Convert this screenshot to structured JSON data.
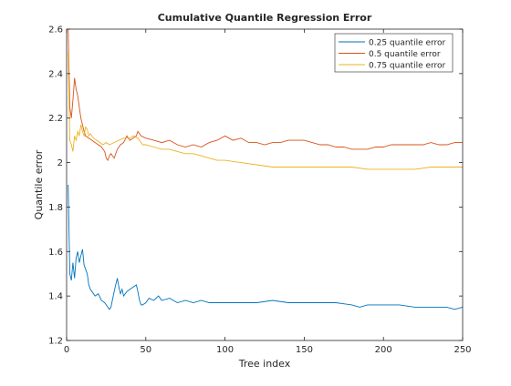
{
  "chart_data": {
    "type": "line",
    "title": "Cumulative Quantile Regression Error",
    "xlabel": "Tree index",
    "ylabel": "Quantile error",
    "xlim": [
      0,
      250
    ],
    "ylim": [
      1.2,
      2.6
    ],
    "xticks": [
      0,
      50,
      100,
      150,
      200,
      250
    ],
    "yticks": [
      1.2,
      1.4,
      1.6,
      1.8,
      2.0,
      2.2,
      2.4,
      2.6
    ],
    "xtick_labels": [
      "0",
      "50",
      "100",
      "150",
      "200",
      "250"
    ],
    "ytick_labels": [
      "1.2",
      "1.4",
      "1.6",
      "1.8",
      "2",
      "2.2",
      "2.4",
      "2.6"
    ],
    "grid": false,
    "legend_position": "top-right",
    "series": [
      {
        "name": "0.25 quantile error",
        "color": "#0072bd",
        "points": [
          [
            1,
            1.9
          ],
          [
            2,
            1.5
          ],
          [
            3,
            1.47
          ],
          [
            4,
            1.55
          ],
          [
            5,
            1.48
          ],
          [
            6,
            1.57
          ],
          [
            7,
            1.6
          ],
          [
            8,
            1.55
          ],
          [
            9,
            1.58
          ],
          [
            10,
            1.61
          ],
          [
            11,
            1.54
          ],
          [
            12,
            1.52
          ],
          [
            13,
            1.5
          ],
          [
            14,
            1.45
          ],
          [
            15,
            1.43
          ],
          [
            16,
            1.42
          ],
          [
            18,
            1.4
          ],
          [
            20,
            1.41
          ],
          [
            22,
            1.38
          ],
          [
            24,
            1.37
          ],
          [
            25,
            1.36
          ],
          [
            27,
            1.34
          ],
          [
            28,
            1.35
          ],
          [
            30,
            1.42
          ],
          [
            31,
            1.45
          ],
          [
            32,
            1.48
          ],
          [
            33,
            1.44
          ],
          [
            34,
            1.41
          ],
          [
            35,
            1.43
          ],
          [
            36,
            1.4
          ],
          [
            38,
            1.42
          ],
          [
            40,
            1.43
          ],
          [
            42,
            1.44
          ],
          [
            44,
            1.45
          ],
          [
            45,
            1.42
          ],
          [
            46,
            1.38
          ],
          [
            47,
            1.36
          ],
          [
            48,
            1.36
          ],
          [
            50,
            1.37
          ],
          [
            52,
            1.39
          ],
          [
            55,
            1.38
          ],
          [
            58,
            1.4
          ],
          [
            60,
            1.38
          ],
          [
            65,
            1.39
          ],
          [
            70,
            1.37
          ],
          [
            75,
            1.38
          ],
          [
            80,
            1.37
          ],
          [
            85,
            1.38
          ],
          [
            90,
            1.37
          ],
          [
            100,
            1.37
          ],
          [
            110,
            1.37
          ],
          [
            120,
            1.37
          ],
          [
            130,
            1.38
          ],
          [
            140,
            1.37
          ],
          [
            150,
            1.37
          ],
          [
            160,
            1.37
          ],
          [
            170,
            1.37
          ],
          [
            180,
            1.36
          ],
          [
            185,
            1.35
          ],
          [
            190,
            1.36
          ],
          [
            200,
            1.36
          ],
          [
            210,
            1.36
          ],
          [
            220,
            1.35
          ],
          [
            230,
            1.35
          ],
          [
            240,
            1.35
          ],
          [
            245,
            1.34
          ],
          [
            250,
            1.35
          ]
        ]
      },
      {
        "name": "0.5 quantile error",
        "color": "#d95319",
        "points": [
          [
            1,
            2.6
          ],
          [
            2,
            2.25
          ],
          [
            3,
            2.2
          ],
          [
            4,
            2.28
          ],
          [
            5,
            2.38
          ],
          [
            6,
            2.33
          ],
          [
            7,
            2.3
          ],
          [
            8,
            2.25
          ],
          [
            9,
            2.2
          ],
          [
            10,
            2.17
          ],
          [
            11,
            2.14
          ],
          [
            12,
            2.12
          ],
          [
            14,
            2.11
          ],
          [
            16,
            2.1
          ],
          [
            18,
            2.09
          ],
          [
            20,
            2.08
          ],
          [
            22,
            2.07
          ],
          [
            24,
            2.05
          ],
          [
            25,
            2.02
          ],
          [
            26,
            2.01
          ],
          [
            27,
            2.03
          ],
          [
            28,
            2.04
          ],
          [
            30,
            2.02
          ],
          [
            32,
            2.06
          ],
          [
            34,
            2.08
          ],
          [
            36,
            2.09
          ],
          [
            38,
            2.12
          ],
          [
            40,
            2.1
          ],
          [
            42,
            2.11
          ],
          [
            44,
            2.12
          ],
          [
            45,
            2.14
          ],
          [
            47,
            2.12
          ],
          [
            50,
            2.11
          ],
          [
            55,
            2.1
          ],
          [
            60,
            2.09
          ],
          [
            65,
            2.1
          ],
          [
            70,
            2.08
          ],
          [
            75,
            2.07
          ],
          [
            80,
            2.08
          ],
          [
            85,
            2.07
          ],
          [
            90,
            2.09
          ],
          [
            95,
            2.1
          ],
          [
            100,
            2.12
          ],
          [
            105,
            2.1
          ],
          [
            110,
            2.11
          ],
          [
            115,
            2.09
          ],
          [
            120,
            2.09
          ],
          [
            125,
            2.08
          ],
          [
            130,
            2.09
          ],
          [
            135,
            2.09
          ],
          [
            140,
            2.1
          ],
          [
            145,
            2.1
          ],
          [
            150,
            2.1
          ],
          [
            155,
            2.09
          ],
          [
            160,
            2.08
          ],
          [
            165,
            2.08
          ],
          [
            170,
            2.07
          ],
          [
            175,
            2.07
          ],
          [
            180,
            2.06
          ],
          [
            185,
            2.06
          ],
          [
            190,
            2.06
          ],
          [
            195,
            2.07
          ],
          [
            200,
            2.07
          ],
          [
            205,
            2.08
          ],
          [
            210,
            2.08
          ],
          [
            215,
            2.08
          ],
          [
            220,
            2.08
          ],
          [
            225,
            2.08
          ],
          [
            230,
            2.09
          ],
          [
            235,
            2.08
          ],
          [
            240,
            2.08
          ],
          [
            245,
            2.09
          ],
          [
            250,
            2.09
          ]
        ]
      },
      {
        "name": "0.75 quantile error",
        "color": "#edb120",
        "points": [
          [
            1,
            2.5
          ],
          [
            2,
            2.1
          ],
          [
            3,
            2.08
          ],
          [
            4,
            2.05
          ],
          [
            5,
            2.12
          ],
          [
            6,
            2.1
          ],
          [
            7,
            2.14
          ],
          [
            8,
            2.12
          ],
          [
            9,
            2.17
          ],
          [
            10,
            2.14
          ],
          [
            11,
            2.12
          ],
          [
            12,
            2.16
          ],
          [
            13,
            2.15
          ],
          [
            14,
            2.12
          ],
          [
            15,
            2.13
          ],
          [
            17,
            2.11
          ],
          [
            19,
            2.1
          ],
          [
            21,
            2.09
          ],
          [
            23,
            2.08
          ],
          [
            25,
            2.09
          ],
          [
            27,
            2.08
          ],
          [
            30,
            2.09
          ],
          [
            33,
            2.1
          ],
          [
            36,
            2.11
          ],
          [
            40,
            2.11
          ],
          [
            42,
            2.12
          ],
          [
            45,
            2.11
          ],
          [
            48,
            2.08
          ],
          [
            50,
            2.08
          ],
          [
            55,
            2.07
          ],
          [
            60,
            2.06
          ],
          [
            65,
            2.06
          ],
          [
            70,
            2.05
          ],
          [
            75,
            2.04
          ],
          [
            80,
            2.04
          ],
          [
            85,
            2.03
          ],
          [
            90,
            2.02
          ],
          [
            95,
            2.01
          ],
          [
            100,
            2.01
          ],
          [
            110,
            2.0
          ],
          [
            120,
            1.99
          ],
          [
            130,
            1.98
          ],
          [
            140,
            1.98
          ],
          [
            150,
            1.98
          ],
          [
            160,
            1.98
          ],
          [
            170,
            1.98
          ],
          [
            180,
            1.98
          ],
          [
            190,
            1.97
          ],
          [
            200,
            1.97
          ],
          [
            210,
            1.97
          ],
          [
            220,
            1.97
          ],
          [
            230,
            1.98
          ],
          [
            240,
            1.98
          ],
          [
            250,
            1.98
          ]
        ]
      }
    ]
  }
}
